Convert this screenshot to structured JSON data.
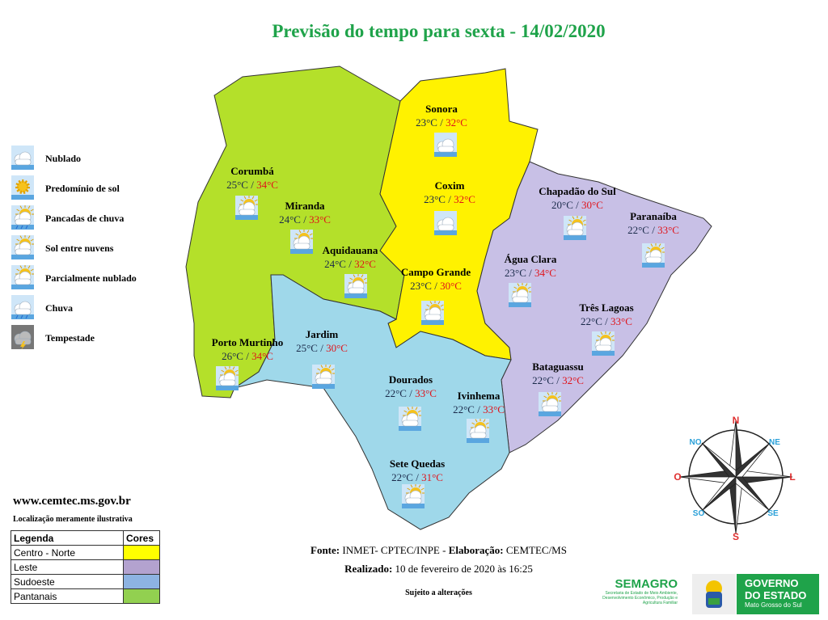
{
  "title": "Previsão do tempo para sexta - 14/02/2020",
  "legend_icons": [
    {
      "label": "Nublado",
      "icon": "cloud"
    },
    {
      "label": "Predomínio de sol",
      "icon": "sun"
    },
    {
      "label": "Pancadas de chuva",
      "icon": "showers"
    },
    {
      "label": "Sol entre nuvens",
      "icon": "sun-cloud"
    },
    {
      "label": "Parcialmente nublado",
      "icon": "partly-cloudy"
    },
    {
      "label": "Chuva",
      "icon": "rain"
    },
    {
      "label": "Tempestade",
      "icon": "storm"
    }
  ],
  "website": "www.cemtec.ms.gov.br",
  "disclaimer": "Localização meramente ilustrativa",
  "legend_table": {
    "header": [
      "Legenda",
      "Cores"
    ],
    "rows": [
      {
        "label": "Centro - Norte",
        "color": "#ffff00"
      },
      {
        "label": "Leste",
        "color": "#b3a2cf"
      },
      {
        "label": "Sudoeste",
        "color": "#8db3e2"
      },
      {
        "label": "Pantanais",
        "color": "#92d050"
      }
    ]
  },
  "regions": {
    "pantanais": "#b4e02a",
    "centro_norte": "#fff200",
    "leste": "#c8c0e6",
    "sudoeste": "#9fd8ea"
  },
  "cities": [
    {
      "name": "Sonora",
      "min": "23°C",
      "max": "32°C",
      "icon": "cloud"
    },
    {
      "name": "Coxim",
      "min": "23°C",
      "max": "32°C",
      "icon": "cloud"
    },
    {
      "name": "Campo Grande",
      "min": "23°C",
      "max": "30°C",
      "icon": "partly-cloudy"
    },
    {
      "name": "Corumbá",
      "min": "25°C",
      "max": "34°C",
      "icon": "partly-cloudy"
    },
    {
      "name": "Miranda",
      "min": "24°C",
      "max": "33°C",
      "icon": "partly-cloudy"
    },
    {
      "name": "Aquidauana",
      "min": "24°C",
      "max": "32°C",
      "icon": "partly-cloudy"
    },
    {
      "name": "Porto Murtinho",
      "min": "26°C",
      "max": "34°C",
      "icon": "partly-cloudy"
    },
    {
      "name": "Jardim",
      "min": "25°C",
      "max": "30°C",
      "icon": "partly-cloudy"
    },
    {
      "name": "Dourados",
      "min": "22°C",
      "max": "33°C",
      "icon": "partly-cloudy"
    },
    {
      "name": "Ivinhema",
      "min": "22°C",
      "max": "33°C",
      "icon": "partly-cloudy"
    },
    {
      "name": "Sete Quedas",
      "min": "22°C",
      "max": "31°C",
      "icon": "partly-cloudy"
    },
    {
      "name": "Chapadão do Sul",
      "min": "20°C",
      "max": "30°C",
      "icon": "partly-cloudy"
    },
    {
      "name": "Paranaíba",
      "min": "22°C",
      "max": "33°C",
      "icon": "partly-cloudy"
    },
    {
      "name": "Água Clara",
      "min": "23°C",
      "max": "34°C",
      "icon": "partly-cloudy"
    },
    {
      "name": "Três Lagoas",
      "min": "22°C",
      "max": "33°C",
      "icon": "partly-cloudy"
    },
    {
      "name": "Bataguassu",
      "min": "22°C",
      "max": "32°C",
      "icon": "partly-cloudy"
    }
  ],
  "compass": {
    "n": "N",
    "ne": "NE",
    "l": "L",
    "se": "SE",
    "s": "S",
    "so": "SO",
    "o": "O",
    "no": "NO"
  },
  "footer": {
    "fonte_label": "Fonte:",
    "fonte": " INMET- CPTEC/INPE - ",
    "elab_label": "Elaboração:",
    "elab": " CEMTEC/MS",
    "realizado_label": "Realizado:",
    "realizado": " 10 de fevereiro de 2020 às 16:25",
    "sujeito": "Sujeito a alterações"
  },
  "logos": {
    "semagro": "SEMAGRO",
    "semagro_sub": "Secretaria de Estado de Meio Ambiente, Desenvolvimento Econômico, Produção e Agricultura Familiar",
    "governo1": "GOVERNO",
    "governo2": "DO ESTADO",
    "governo3": "Mato Grosso do Sul"
  }
}
